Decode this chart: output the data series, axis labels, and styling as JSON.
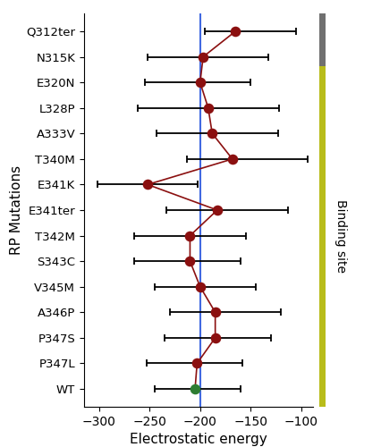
{
  "labels": [
    "Q312ter",
    "N315K",
    "E320N",
    "L328P",
    "A333V",
    "T340M",
    "E341K",
    "E341ter",
    "T342M",
    "S343C",
    "V345M",
    "A346P",
    "P347S",
    "P347L",
    "WT"
  ],
  "means": [
    -165,
    -197,
    -200,
    -192,
    -188,
    -168,
    -252,
    -183,
    -210,
    -210,
    -200,
    -185,
    -185,
    -203,
    -205
  ],
  "xerr_left": [
    30,
    55,
    55,
    70,
    55,
    45,
    50,
    50,
    55,
    55,
    45,
    45,
    50,
    50,
    40
  ],
  "xerr_right": [
    60,
    65,
    50,
    70,
    65,
    75,
    50,
    70,
    55,
    50,
    55,
    65,
    55,
    45,
    45
  ],
  "dot_color_mutant": "#8B1010",
  "dot_color_wt": "#2e7d32",
  "line_color": "#8B1010",
  "vline_x": -200,
  "vline_color": "#4169E1",
  "xlim": [
    -315,
    -88
  ],
  "xticks": [
    -300,
    -250,
    -200,
    -150,
    -100
  ],
  "xlabel": "Electrostatic energy",
  "ylabel": "RP Mutations",
  "bar_color_gray": "#707070",
  "bar_color_yellow": "#b8bc1a",
  "binding_site_label": "Binding site",
  "dot_size": 70,
  "capsize": 3,
  "elinewidth": 1.3,
  "capthick": 1.3,
  "linewidth": 1.2
}
